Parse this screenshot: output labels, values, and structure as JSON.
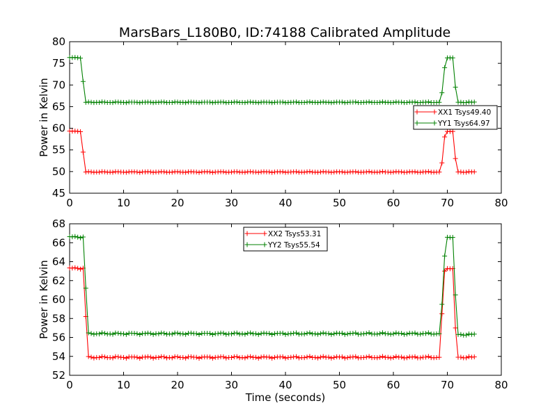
{
  "figure": {
    "title": "MarsBars_L180B0, ID:74188 Calibrated Amplitude",
    "background": "#ffffff"
  },
  "chart_data": [
    {
      "type": "line",
      "title": "MarsBars_L180B0, ID:74188 Calibrated Amplitude",
      "xlabel": "",
      "ylabel": "Power in Kelvin",
      "xlim": [
        0,
        80
      ],
      "ylim": [
        45,
        80
      ],
      "xticks": [
        0,
        10,
        20,
        30,
        40,
        50,
        60,
        70,
        80
      ],
      "yticks": [
        45,
        50,
        55,
        60,
        65,
        70,
        75,
        80
      ],
      "grid": false,
      "legend_position": "right",
      "marker": "plus",
      "series": [
        {
          "name": "XX1 Tsys49.40",
          "color": "#ff0000",
          "segments": [
            {
              "x": [
                0,
                2
              ],
              "value": 59.3
            },
            {
              "x": [
                2.5
              ],
              "value": 54.5
            },
            {
              "x": [
                3,
                68.5
              ],
              "value": 49.9
            },
            {
              "x": [
                69
              ],
              "value": 52.0
            },
            {
              "x": [
                69.5
              ],
              "value": 58.0
            },
            {
              "x": [
                70,
                71
              ],
              "value": 59.3
            },
            {
              "x": [
                71.5
              ],
              "value": 53.0
            },
            {
              "x": [
                72,
                75
              ],
              "value": 49.9
            }
          ]
        },
        {
          "name": "YY1 Tsys64.97",
          "color": "#008000",
          "segments": [
            {
              "x": [
                0,
                2
              ],
              "value": 76.3
            },
            {
              "x": [
                2.5
              ],
              "value": 70.8
            },
            {
              "x": [
                3,
                68.5
              ],
              "value": 66.0
            },
            {
              "x": [
                69
              ],
              "value": 68.2
            },
            {
              "x": [
                69.5
              ],
              "value": 74.0
            },
            {
              "x": [
                70,
                71
              ],
              "value": 76.3
            },
            {
              "x": [
                71.5
              ],
              "value": 69.5
            },
            {
              "x": [
                72,
                75
              ],
              "value": 66.0
            }
          ]
        }
      ]
    },
    {
      "type": "line",
      "title": "",
      "xlabel": "Time (seconds)",
      "ylabel": "Power in Kelvin",
      "xlim": [
        0,
        80
      ],
      "ylim": [
        52,
        68
      ],
      "xticks": [
        0,
        10,
        20,
        30,
        40,
        50,
        60,
        70,
        80
      ],
      "yticks": [
        52,
        54,
        56,
        58,
        60,
        62,
        64,
        66,
        68
      ],
      "grid": false,
      "legend_position": "top-center",
      "marker": "plus",
      "series": [
        {
          "name": "XX2 Tsys53.31",
          "color": "#ff0000",
          "segments": [
            {
              "x": [
                0,
                2.5
              ],
              "value": 63.3
            },
            {
              "x": [
                3
              ],
              "value": 58.2
            },
            {
              "x": [
                3.5,
                68.5
              ],
              "value": 53.9
            },
            {
              "x": [
                69
              ],
              "value": 58.5
            },
            {
              "x": [
                69.5
              ],
              "value": 63.0
            },
            {
              "x": [
                70,
                71
              ],
              "value": 63.3
            },
            {
              "x": [
                71.5
              ],
              "value": 57.0
            },
            {
              "x": [
                72,
                75
              ],
              "value": 53.9
            }
          ]
        },
        {
          "name": "YY2 Tsys55.54",
          "color": "#008000",
          "segments": [
            {
              "x": [
                0,
                2.5
              ],
              "value": 66.6
            },
            {
              "x": [
                3
              ],
              "value": 61.2
            },
            {
              "x": [
                3.5,
                68.5
              ],
              "value": 56.4
            },
            {
              "x": [
                69
              ],
              "value": 59.5
            },
            {
              "x": [
                69.5
              ],
              "value": 64.6
            },
            {
              "x": [
                70,
                71
              ],
              "value": 66.6
            },
            {
              "x": [
                71.5
              ],
              "value": 60.5
            },
            {
              "x": [
                72,
                75
              ],
              "value": 56.3
            }
          ]
        }
      ]
    }
  ]
}
